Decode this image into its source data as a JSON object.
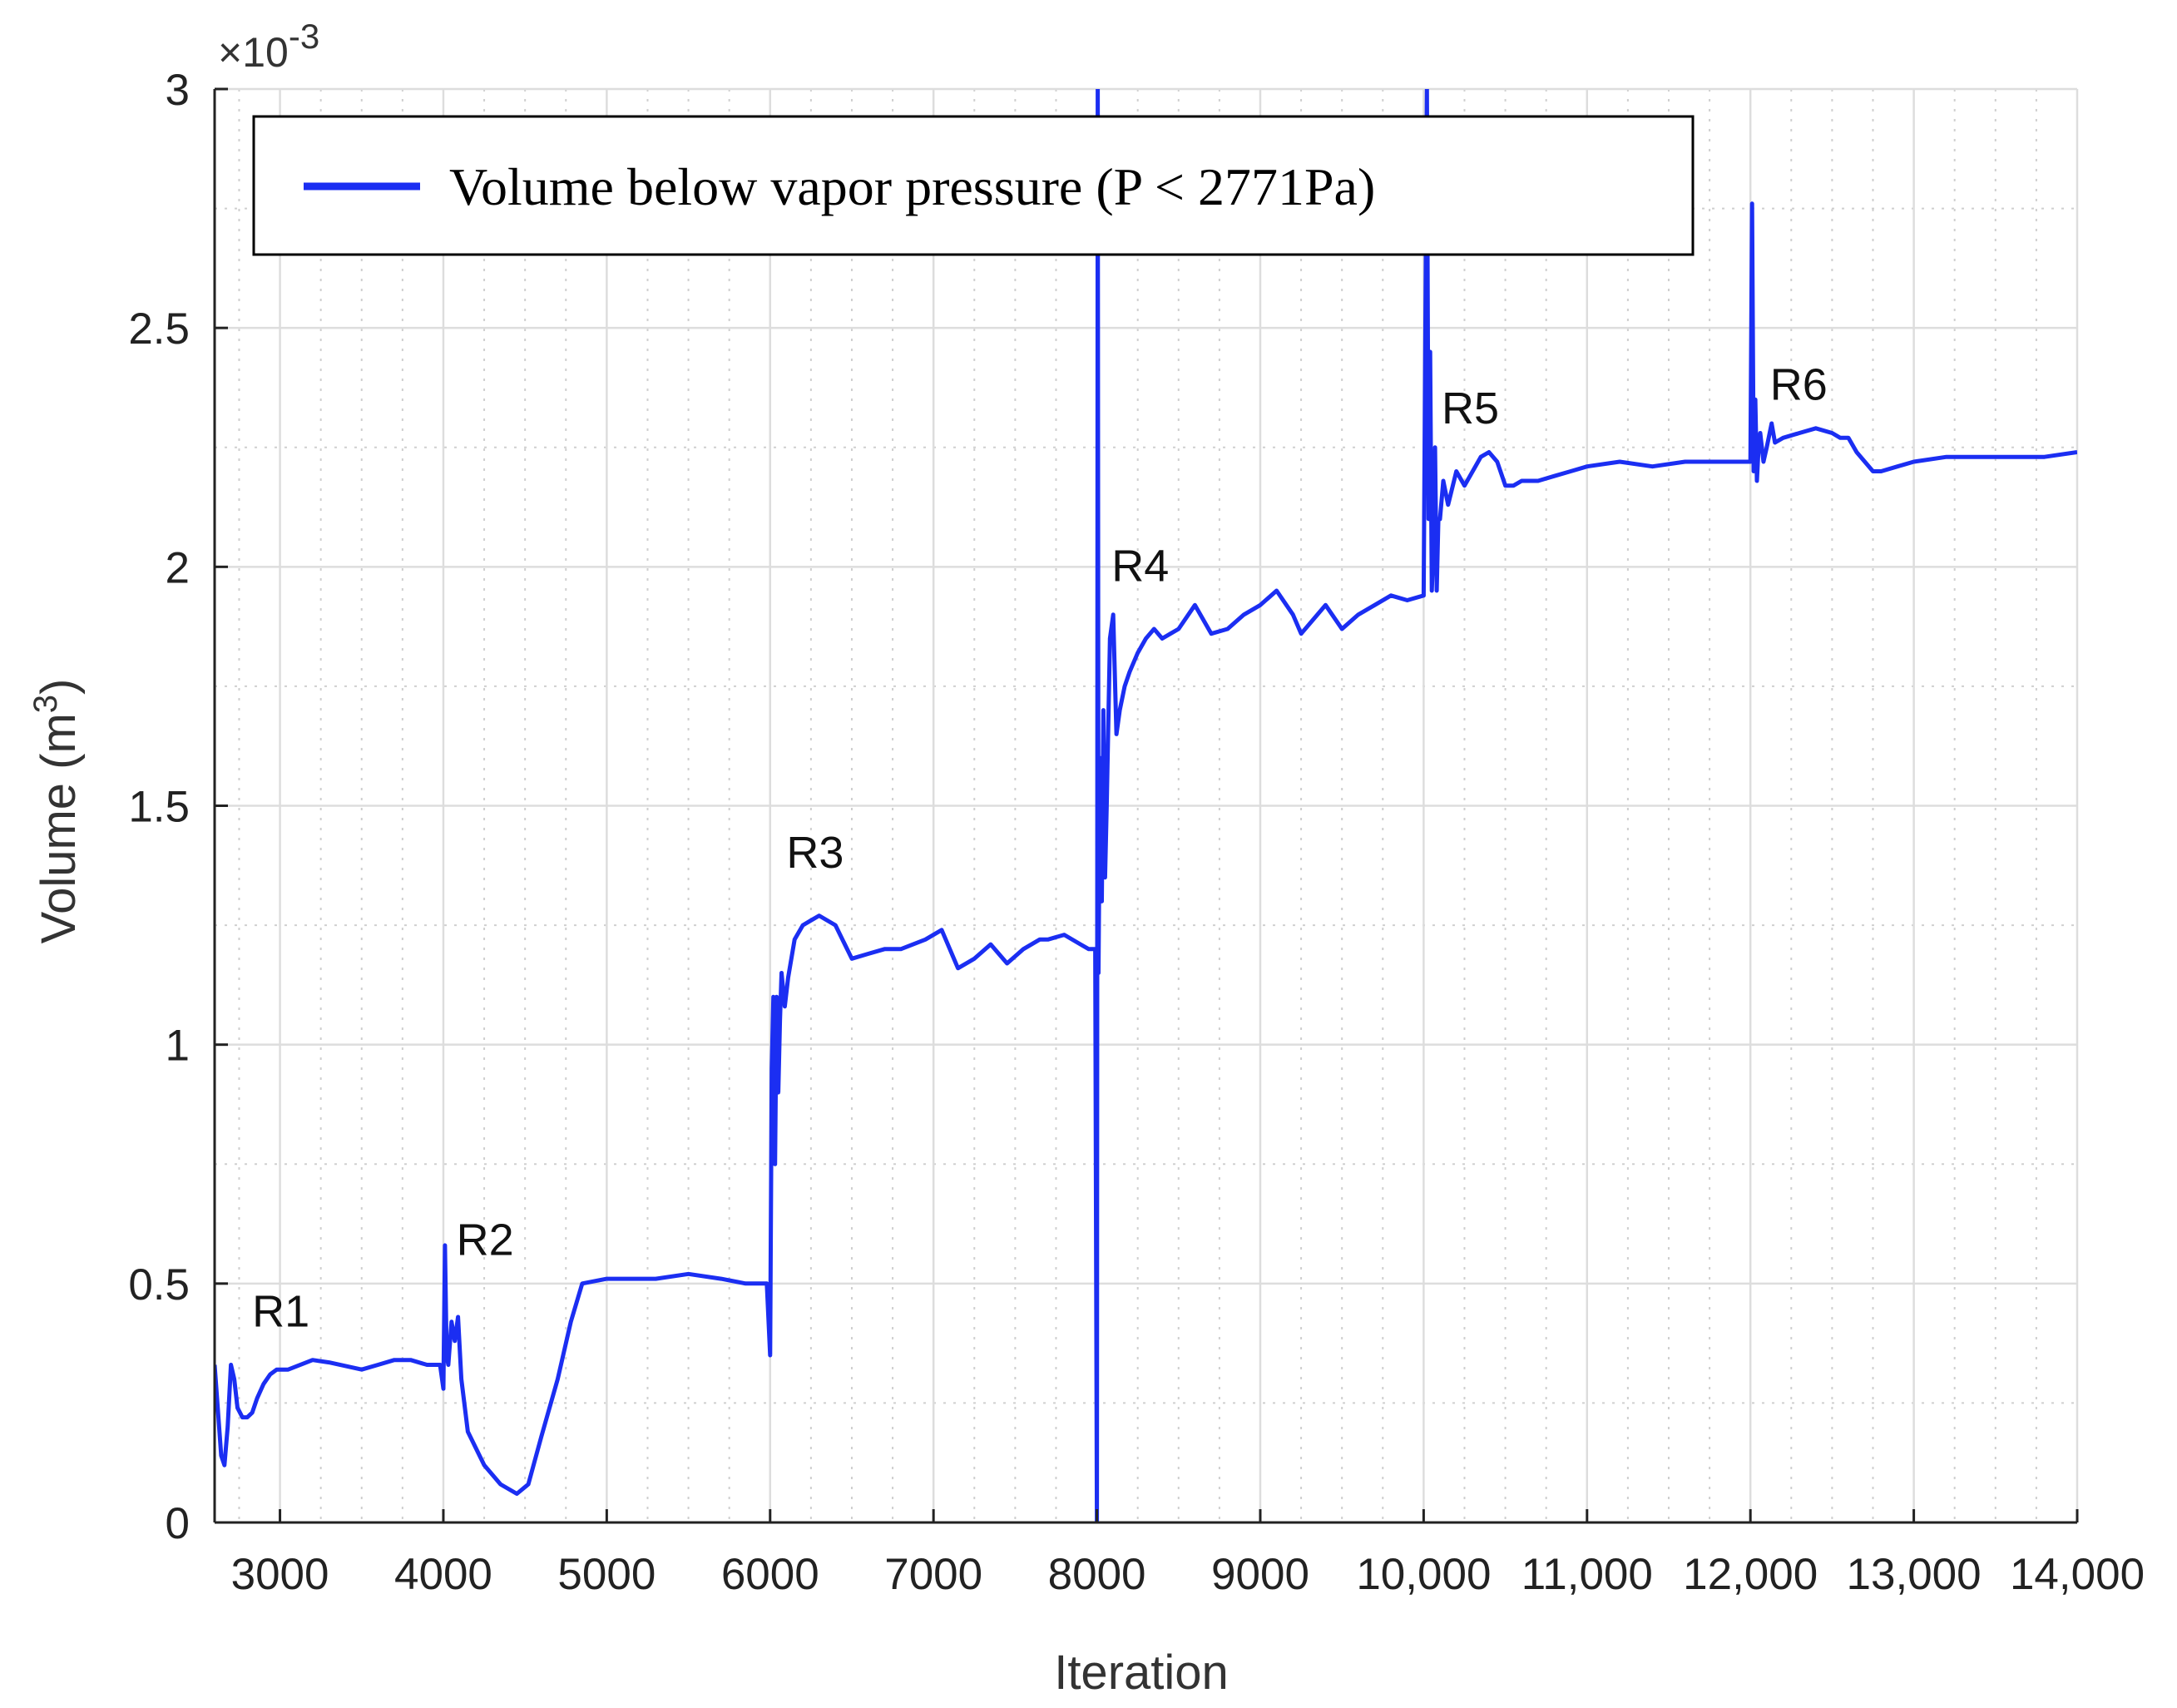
{
  "chart_data": {
    "type": "line",
    "title": "",
    "xlabel": "Iteration",
    "ylabel": "Volume (m",
    "ylabel_superscript": "3",
    "ylabel_close": ")",
    "y_exponent_base": "×10",
    "y_exponent_power": "-3",
    "xlim": [
      2600,
      14000
    ],
    "ylim": [
      0,
      3
    ],
    "x_ticks": [
      3000,
      4000,
      5000,
      6000,
      7000,
      8000,
      9000,
      10000,
      11000,
      12000,
      13000,
      14000
    ],
    "x_tick_labels": [
      "3000",
      "4000",
      "5000",
      "6000",
      "7000",
      "8000",
      "9000",
      "10,000",
      "11,000",
      "12,000",
      "13,000",
      "14,000"
    ],
    "y_ticks": [
      0,
      0.5,
      1,
      1.5,
      2,
      2.5,
      3
    ],
    "y_tick_labels": [
      "0",
      "0.5",
      "1",
      "1.5",
      "2",
      "2.5",
      "3"
    ],
    "y_minor_step": 0.25,
    "grid": true,
    "legend_position": "top-left",
    "colors": {
      "series": "#1b2ef2",
      "grid_major": "#dddddd",
      "grid_minor": "#cfcfcf",
      "axis": "#222222"
    },
    "annotations": [
      {
        "text": "R1",
        "x": 2830,
        "y": 0.41
      },
      {
        "text": "R2",
        "x": 4080,
        "y": 0.56
      },
      {
        "text": "R3",
        "x": 6100,
        "y": 1.37
      },
      {
        "text": "R4",
        "x": 8090,
        "y": 1.97
      },
      {
        "text": "R5",
        "x": 10110,
        "y": 2.3
      },
      {
        "text": "R6",
        "x": 12120,
        "y": 2.35
      }
    ],
    "series": [
      {
        "name": "Volume below vapor pressure (P < 2771Pa)",
        "x": [
          2600,
          2640,
          2660,
          2680,
          2700,
          2720,
          2740,
          2770,
          2800,
          2830,
          2860,
          2900,
          2940,
          2980,
          3050,
          3200,
          3300,
          3500,
          3600,
          3700,
          3800,
          3900,
          3980,
          4000,
          4010,
          4020,
          4030,
          4050,
          4070,
          4090,
          4110,
          4150,
          4250,
          4350,
          4450,
          4520,
          4600,
          4700,
          4780,
          4850,
          5000,
          5300,
          5500,
          5700,
          5850,
          5980,
          6000,
          6010,
          6020,
          6030,
          6040,
          6050,
          6060,
          6070,
          6090,
          6110,
          6150,
          6200,
          6250,
          6300,
          6400,
          6500,
          6600,
          6700,
          6800,
          6950,
          7050,
          7100,
          7150,
          7250,
          7350,
          7450,
          7550,
          7650,
          7700,
          7800,
          7900,
          7950,
          7990,
          8000,
          8005,
          8010,
          8020,
          8030,
          8040,
          8050,
          8060,
          8080,
          8100,
          8120,
          8140,
          8170,
          8200,
          8250,
          8300,
          8350,
          8400,
          8450,
          8500,
          8600,
          8700,
          8800,
          8900,
          9000,
          9100,
          9200,
          9250,
          9300,
          9400,
          9500,
          9600,
          9700,
          9800,
          9900,
          10000,
          10020,
          10030,
          10040,
          10050,
          10060,
          10070,
          10080,
          10090,
          10100,
          10120,
          10150,
          10200,
          10250,
          10300,
          10350,
          10400,
          10450,
          10500,
          10550,
          10600,
          10700,
          10800,
          10900,
          11000,
          11200,
          11400,
          11600,
          11800,
          12000,
          12010,
          12020,
          12030,
          12040,
          12050,
          12060,
          12080,
          12100,
          12130,
          12150,
          12200,
          12300,
          12400,
          12500,
          12550,
          12600,
          12650,
          12700,
          12750,
          12800,
          12900,
          13000,
          13200,
          13400,
          13600,
          13800,
          14000
        ],
        "y": [
          0.33,
          0.14,
          0.12,
          0.2,
          0.33,
          0.3,
          0.24,
          0.22,
          0.22,
          0.23,
          0.26,
          0.29,
          0.31,
          0.32,
          0.32,
          0.34,
          0.335,
          0.32,
          0.33,
          0.34,
          0.34,
          0.33,
          0.33,
          0.28,
          0.58,
          0.35,
          0.33,
          0.42,
          0.38,
          0.43,
          0.3,
          0.19,
          0.12,
          0.08,
          0.06,
          0.08,
          0.18,
          0.3,
          0.42,
          0.5,
          0.51,
          0.51,
          0.52,
          0.51,
          0.5,
          0.5,
          0.35,
          0.95,
          1.1,
          0.75,
          1.1,
          0.9,
          1.05,
          1.15,
          1.08,
          1.14,
          1.22,
          1.25,
          1.26,
          1.27,
          1.25,
          1.18,
          1.19,
          1.2,
          1.2,
          1.22,
          1.24,
          1.2,
          1.16,
          1.18,
          1.21,
          1.17,
          1.2,
          1.22,
          1.22,
          1.23,
          1.21,
          1.2,
          1.2,
          0.0,
          3.0,
          1.15,
          1.6,
          1.3,
          1.7,
          1.35,
          1.5,
          1.85,
          1.9,
          1.65,
          1.7,
          1.75,
          1.78,
          1.82,
          1.85,
          1.87,
          1.85,
          1.86,
          1.87,
          1.92,
          1.86,
          1.87,
          1.9,
          1.92,
          1.95,
          1.9,
          1.86,
          1.88,
          1.92,
          1.87,
          1.9,
          1.92,
          1.94,
          1.93,
          1.94,
          3.0,
          2.1,
          2.45,
          1.95,
          2.05,
          2.25,
          1.95,
          2.1,
          2.1,
          2.18,
          2.13,
          2.2,
          2.17,
          2.2,
          2.23,
          2.24,
          2.22,
          2.17,
          2.17,
          2.18,
          2.18,
          2.19,
          2.2,
          2.21,
          2.22,
          2.21,
          2.22,
          2.22,
          2.22,
          2.76,
          2.2,
          2.35,
          2.18,
          2.25,
          2.28,
          2.22,
          2.25,
          2.3,
          2.26,
          2.27,
          2.28,
          2.29,
          2.28,
          2.27,
          2.27,
          2.24,
          2.22,
          2.2,
          2.2,
          2.21,
          2.22,
          2.23,
          2.23,
          2.23,
          2.23,
          2.24
        ]
      }
    ]
  }
}
